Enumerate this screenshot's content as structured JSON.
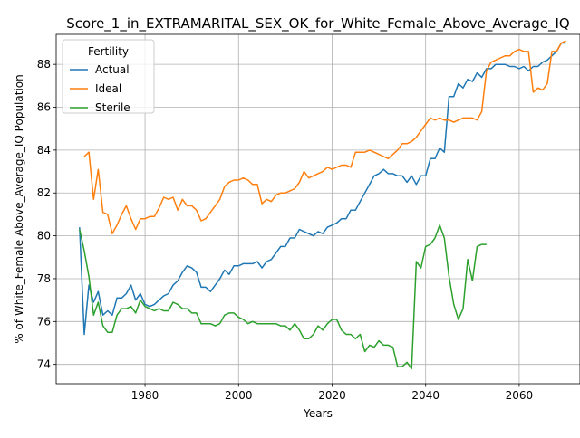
{
  "chart_data": {
    "type": "line",
    "title": "Score_1_in_EXTRAMARITAL_SEX_OK_for_White_Female_Above_Average_IQ",
    "xlabel": "Years",
    "ylabel": "% of White_Female Above_Average_IQ Population",
    "xlim": [
      1961,
      2073
    ],
    "ylim": [
      73.1,
      89.4
    ],
    "xticks": [
      1980,
      2000,
      2020,
      2040,
      2060
    ],
    "yticks": [
      74,
      76,
      78,
      80,
      82,
      84,
      86,
      88
    ],
    "grid": true,
    "legend": {
      "title": "Fertility",
      "position": "top-left"
    },
    "series": [
      {
        "name": "Actual",
        "color": "#1f77b4",
        "x": [
          1966,
          1967,
          1968,
          1969,
          1970,
          1971,
          1972,
          1973,
          1974,
          1975,
          1976,
          1977,
          1978,
          1979,
          1980,
          1981,
          1982,
          1983,
          1984,
          1985,
          1986,
          1987,
          1988,
          1989,
          1990,
          1991,
          1992,
          1993,
          1994,
          1995,
          1996,
          1997,
          1998,
          1999,
          2000,
          2001,
          2002,
          2003,
          2004,
          2005,
          2006,
          2007,
          2008,
          2009,
          2010,
          2011,
          2012,
          2013,
          2014,
          2015,
          2016,
          2017,
          2018,
          2019,
          2020,
          2021,
          2022,
          2023,
          2024,
          2025,
          2026,
          2027,
          2028,
          2029,
          2030,
          2031,
          2032,
          2033,
          2034,
          2035,
          2036,
          2037,
          2038,
          2039,
          2040,
          2041,
          2042,
          2043,
          2044,
          2045,
          2046,
          2047,
          2048,
          2049,
          2050,
          2051,
          2052,
          2053,
          2054,
          2055,
          2056,
          2057,
          2058,
          2059,
          2060,
          2061,
          2062,
          2063,
          2064,
          2065,
          2066,
          2067,
          2068,
          2069,
          2070
        ],
        "values": [
          80.4,
          75.4,
          77.7,
          76.9,
          77.4,
          76.3,
          76.5,
          76.3,
          77.1,
          77.1,
          77.3,
          77.7,
          77.0,
          77.3,
          76.8,
          76.7,
          76.8,
          77.0,
          77.2,
          77.3,
          77.7,
          77.9,
          78.3,
          78.6,
          78.5,
          78.3,
          77.6,
          77.6,
          77.4,
          77.7,
          78.0,
          78.4,
          78.2,
          78.6,
          78.6,
          78.7,
          78.7,
          78.7,
          78.8,
          78.5,
          78.8,
          78.9,
          79.2,
          79.5,
          79.5,
          79.9,
          79.9,
          80.3,
          80.2,
          80.1,
          80.0,
          80.2,
          80.1,
          80.4,
          80.5,
          80.6,
          80.8,
          80.8,
          81.2,
          81.2,
          81.6,
          82.0,
          82.4,
          82.8,
          82.9,
          83.1,
          82.9,
          82.9,
          82.8,
          82.8,
          82.5,
          82.8,
          82.4,
          82.8,
          82.8,
          83.6,
          83.6,
          84.1,
          83.9,
          86.5,
          86.5,
          87.1,
          86.9,
          87.3,
          87.2,
          87.6,
          87.4,
          87.8,
          87.8,
          88.0,
          88.0,
          88.0,
          87.9,
          87.9,
          87.8,
          87.9,
          87.7,
          87.9,
          87.9,
          88.1,
          88.2,
          88.4,
          88.6,
          89.0,
          89.0
        ]
      },
      {
        "name": "Ideal",
        "color": "#ff7f0e",
        "x": [
          1967,
          1968,
          1969,
          1970,
          1971,
          1972,
          1973,
          1974,
          1975,
          1976,
          1977,
          1978,
          1979,
          1980,
          1981,
          1982,
          1983,
          1984,
          1985,
          1986,
          1987,
          1988,
          1989,
          1990,
          1991,
          1992,
          1993,
          1994,
          1995,
          1996,
          1997,
          1998,
          1999,
          2000,
          2001,
          2002,
          2003,
          2004,
          2005,
          2006,
          2007,
          2008,
          2009,
          2010,
          2011,
          2012,
          2013,
          2014,
          2015,
          2016,
          2017,
          2018,
          2019,
          2020,
          2021,
          2022,
          2023,
          2024,
          2025,
          2026,
          2027,
          2028,
          2029,
          2030,
          2031,
          2032,
          2033,
          2034,
          2035,
          2036,
          2037,
          2038,
          2039,
          2040,
          2041,
          2042,
          2043,
          2044,
          2045,
          2046,
          2047,
          2048,
          2049,
          2050,
          2051,
          2052,
          2053,
          2054,
          2055,
          2056,
          2057,
          2058,
          2059,
          2060,
          2061,
          2062,
          2063,
          2064,
          2065,
          2066,
          2067,
          2068,
          2069,
          2070
        ],
        "values": [
          83.7,
          83.9,
          81.7,
          83.1,
          81.1,
          81.0,
          80.1,
          80.5,
          81.0,
          81.4,
          80.8,
          80.3,
          80.8,
          80.8,
          80.9,
          80.9,
          81.3,
          81.8,
          81.7,
          81.8,
          81.2,
          81.7,
          81.4,
          81.4,
          81.2,
          80.7,
          80.8,
          81.1,
          81.4,
          81.7,
          82.3,
          82.5,
          82.6,
          82.6,
          82.7,
          82.6,
          82.4,
          82.4,
          81.5,
          81.7,
          81.6,
          81.9,
          82.0,
          82.0,
          82.1,
          82.2,
          82.5,
          83.0,
          82.7,
          82.8,
          82.9,
          83.0,
          83.2,
          83.1,
          83.2,
          83.3,
          83.3,
          83.2,
          83.9,
          83.9,
          83.9,
          84.0,
          83.9,
          83.8,
          83.7,
          83.6,
          83.8,
          84.0,
          84.3,
          84.3,
          84.4,
          84.6,
          84.9,
          85.2,
          85.5,
          85.4,
          85.5,
          85.4,
          85.4,
          85.3,
          85.4,
          85.5,
          85.5,
          85.5,
          85.4,
          85.8,
          87.7,
          88.1,
          88.2,
          88.3,
          88.4,
          88.4,
          88.6,
          88.7,
          88.6,
          88.6,
          86.7,
          86.9,
          86.8,
          87.1,
          88.6,
          88.6,
          89.0,
          89.1
        ]
      },
      {
        "name": "Sterile",
        "color": "#2ca02c",
        "x": [
          1966,
          1967,
          1968,
          1969,
          1970,
          1971,
          1972,
          1973,
          1974,
          1975,
          1976,
          1977,
          1978,
          1979,
          1980,
          1981,
          1982,
          1983,
          1984,
          1985,
          1986,
          1987,
          1988,
          1989,
          1990,
          1991,
          1992,
          1993,
          1994,
          1995,
          1996,
          1997,
          1998,
          1999,
          2000,
          2001,
          2002,
          2003,
          2004,
          2005,
          2006,
          2007,
          2008,
          2009,
          2010,
          2011,
          2012,
          2013,
          2014,
          2015,
          2016,
          2017,
          2018,
          2019,
          2020,
          2021,
          2022,
          2023,
          2024,
          2025,
          2026,
          2027,
          2028,
          2029,
          2030,
          2031,
          2032,
          2033,
          2034,
          2035,
          2036,
          2037,
          2038,
          2039,
          2040,
          2041,
          2042,
          2043,
          2044,
          2045,
          2046,
          2047,
          2048,
          2049,
          2050,
          2051,
          2052,
          2053
        ],
        "values": [
          80.3,
          79.3,
          78.1,
          76.3,
          76.9,
          75.8,
          75.5,
          75.5,
          76.3,
          76.6,
          76.6,
          76.7,
          76.4,
          77.0,
          76.7,
          76.6,
          76.5,
          76.6,
          76.5,
          76.5,
          76.9,
          76.8,
          76.6,
          76.6,
          76.4,
          76.4,
          75.9,
          75.9,
          75.9,
          75.8,
          75.9,
          76.3,
          76.4,
          76.4,
          76.2,
          76.1,
          75.9,
          76.0,
          75.9,
          75.9,
          75.9,
          75.9,
          75.9,
          75.8,
          75.8,
          75.6,
          75.9,
          75.6,
          75.2,
          75.2,
          75.4,
          75.8,
          75.6,
          75.9,
          76.1,
          76.1,
          75.6,
          75.4,
          75.4,
          75.2,
          75.4,
          74.6,
          74.9,
          74.8,
          75.1,
          74.9,
          74.9,
          74.8,
          73.9,
          73.9,
          74.1,
          73.8,
          78.8,
          78.5,
          79.5,
          79.6,
          79.9,
          80.5,
          79.9,
          78.1,
          76.8,
          76.1,
          76.6,
          78.9,
          77.9,
          79.5,
          79.6,
          79.6
        ]
      }
    ]
  }
}
